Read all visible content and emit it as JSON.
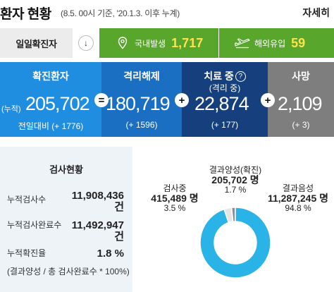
{
  "header": {
    "title": "환자 현황",
    "subtitle": "(8.5. 00시 기준, '20.1.3. 이후 누계)",
    "detail_link": "자세히"
  },
  "daily": {
    "label": "일일확진자",
    "domestic_label": "국내발생",
    "domestic_value": "1,717",
    "overseas_label": "해외유입",
    "overseas_value": "59"
  },
  "stats": {
    "confirmed": {
      "title": "확진환자",
      "prefix": "(누적)",
      "value": "205,702",
      "change": "전일대비 (+ 1776)"
    },
    "released": {
      "title": "격리해제",
      "value": "180,719",
      "change": "(+ 1596)"
    },
    "treatment": {
      "title": "치료 중",
      "sub": "(격리 중)",
      "value": "22,874",
      "change": "(+ 177)"
    },
    "death": {
      "title": "사망",
      "value": "2,109",
      "change": "(+ 3)"
    },
    "op_equals": "=",
    "op_plus": "+"
  },
  "tests": {
    "title": "검사현황",
    "cumulative_tests_label": "누적검사수",
    "cumulative_tests_value": "11,908,436 건",
    "completed_label": "누적검사완료수",
    "completed_value": "11,492,947 건",
    "positive_rate_label": "누적확진율",
    "positive_rate_value": "1.8 %",
    "note": "(결과양성 / 총 검사완료수 * 100%)"
  },
  "chart_data": {
    "type": "pie",
    "style": "donut",
    "slices": [
      {
        "name": "검사중",
        "value": 415489,
        "value_label": "415,489 명",
        "percent": 3.5,
        "percent_label": "3.5 %",
        "color": "#e6e6e6"
      },
      {
        "name": "결과양성(확진)",
        "value": 205702,
        "value_label": "205,702 명",
        "percent": 1.7,
        "percent_label": "1.7 %",
        "color": "#8f8f8f"
      },
      {
        "name": "결과음성",
        "value": 11287245,
        "value_label": "11,287,245 명",
        "percent": 94.8,
        "percent_label": "94.8 %",
        "color": "#29b3e6"
      }
    ]
  },
  "colors": {
    "green": "#59a62d",
    "yellow": "#ffe34d",
    "confirmed_blue": "#1f8de0",
    "released_blue": "#1b6fc2",
    "treatment_navy": "#153f7d",
    "death_gray": "#7e7e7e"
  },
  "icons": {
    "down_arrow": "down-arrow-icon",
    "domestic": "location-pin-icon",
    "overseas": "airplane-icon",
    "help": "question-icon"
  }
}
